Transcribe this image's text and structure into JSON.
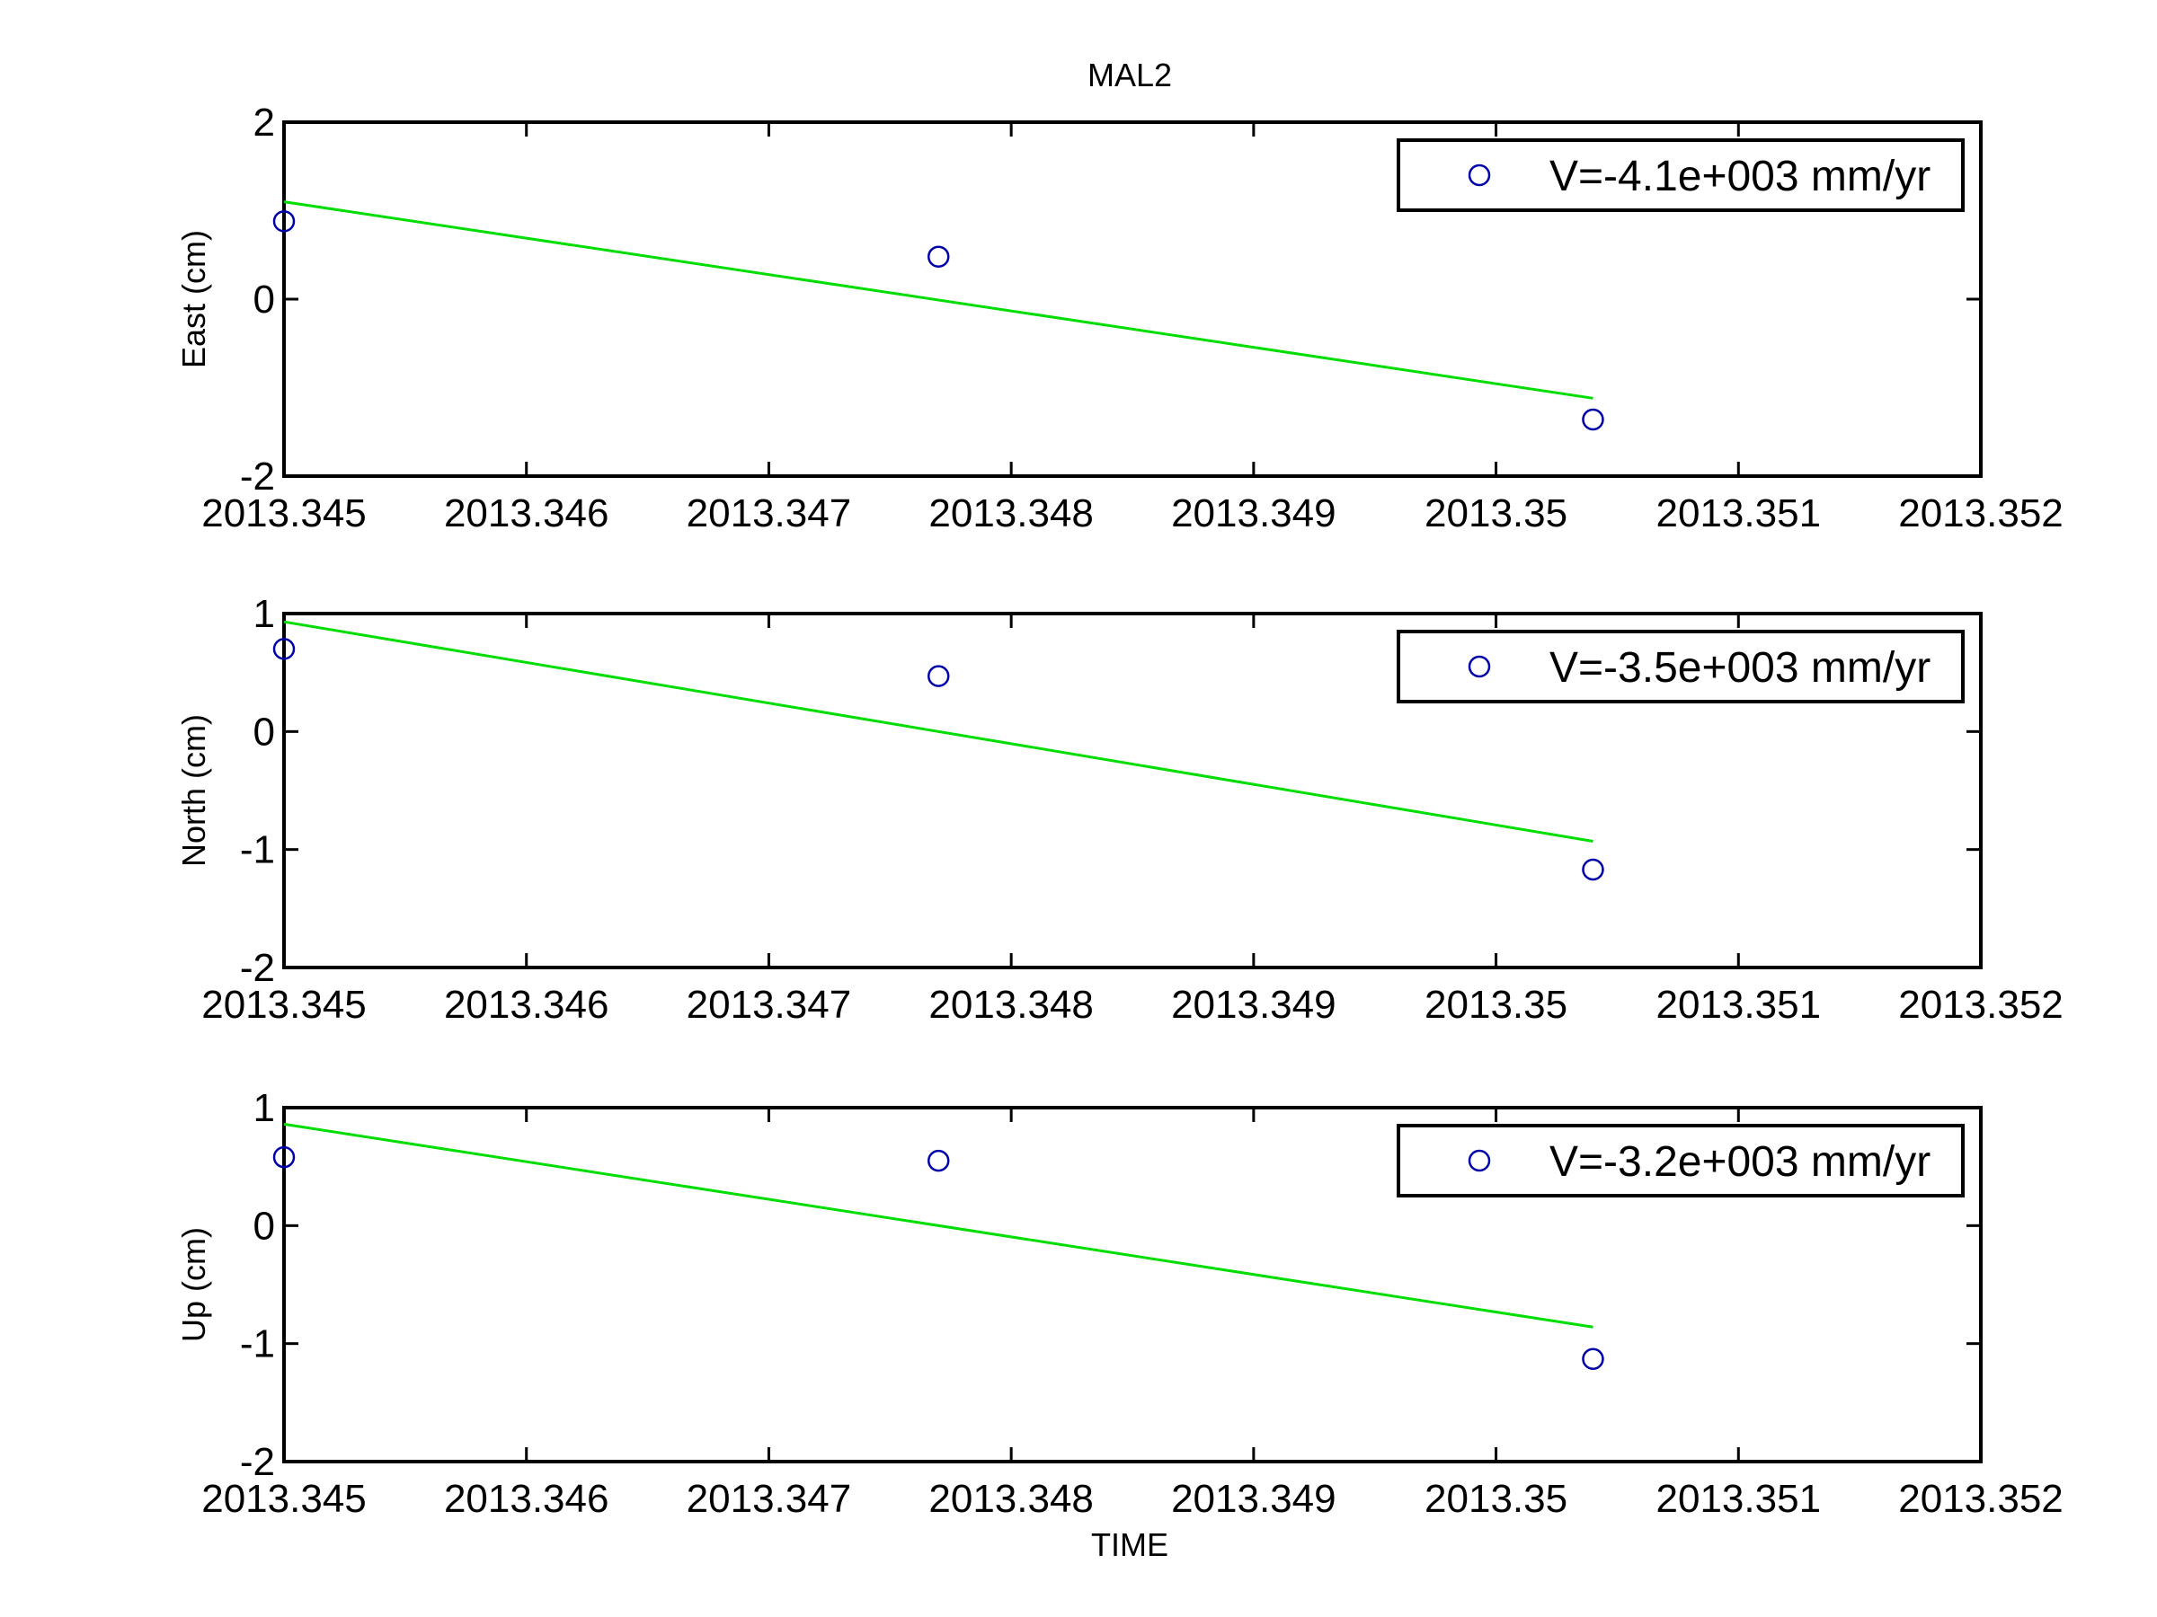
{
  "figure": {
    "title": "MAL2",
    "xlabel": "TIME"
  },
  "colors": {
    "marker": "#0000aa",
    "fit_line": "#00dd00",
    "axes": "#000000",
    "background": "#ffffff"
  },
  "chart_data": [
    {
      "type": "scatter",
      "ylabel": "East (cm)",
      "xlim": [
        2013.345,
        2013.352
      ],
      "ylim": [
        -2,
        2
      ],
      "x_ticks": [
        2013.345,
        2013.346,
        2013.347,
        2013.348,
        2013.349,
        2013.35,
        2013.351,
        2013.352
      ],
      "x_tick_labels": [
        "2013.345",
        "2013.346",
        "2013.347",
        "2013.348",
        "2013.349",
        "2013.35",
        "2013.351",
        "2013.352"
      ],
      "y_ticks": [
        -2,
        0,
        2
      ],
      "y_tick_labels": [
        "-2",
        "0",
        "2"
      ],
      "points": [
        {
          "x": 2013.345,
          "y": 0.88
        },
        {
          "x": 2013.3477,
          "y": 0.48
        },
        {
          "x": 2013.3504,
          "y": -1.36
        }
      ],
      "fit_line": [
        {
          "x": 2013.345,
          "y": 1.1
        },
        {
          "x": 2013.3504,
          "y": -1.12
        }
      ],
      "legend": "V=-4.1e+003 mm/yr",
      "legend_position": "top-right"
    },
    {
      "type": "scatter",
      "ylabel": "North (cm)",
      "xlim": [
        2013.345,
        2013.352
      ],
      "ylim": [
        -2,
        1
      ],
      "x_ticks": [
        2013.345,
        2013.346,
        2013.347,
        2013.348,
        2013.349,
        2013.35,
        2013.351,
        2013.352
      ],
      "x_tick_labels": [
        "2013.345",
        "2013.346",
        "2013.347",
        "2013.348",
        "2013.349",
        "2013.35",
        "2013.351",
        "2013.352"
      ],
      "y_ticks": [
        -2,
        -1,
        0,
        1
      ],
      "y_tick_labels": [
        "-2",
        "-1",
        "0",
        "1"
      ],
      "points": [
        {
          "x": 2013.345,
          "y": 0.7
        },
        {
          "x": 2013.3477,
          "y": 0.47
        },
        {
          "x": 2013.3504,
          "y": -1.17
        }
      ],
      "fit_line": [
        {
          "x": 2013.345,
          "y": 0.93
        },
        {
          "x": 2013.3504,
          "y": -0.93
        }
      ],
      "legend": "V=-3.5e+003 mm/yr",
      "legend_position": "top-right"
    },
    {
      "type": "scatter",
      "ylabel": "Up (cm)",
      "xlim": [
        2013.345,
        2013.352
      ],
      "ylim": [
        -2,
        1
      ],
      "x_ticks": [
        2013.345,
        2013.346,
        2013.347,
        2013.348,
        2013.349,
        2013.35,
        2013.351,
        2013.352
      ],
      "x_tick_labels": [
        "2013.345",
        "2013.346",
        "2013.347",
        "2013.348",
        "2013.349",
        "2013.35",
        "2013.351",
        "2013.352"
      ],
      "y_ticks": [
        -2,
        -1,
        0,
        1
      ],
      "y_tick_labels": [
        "-2",
        "-1",
        "0",
        "1"
      ],
      "points": [
        {
          "x": 2013.345,
          "y": 0.58
        },
        {
          "x": 2013.3477,
          "y": 0.55
        },
        {
          "x": 2013.3504,
          "y": -1.13
        }
      ],
      "fit_line": [
        {
          "x": 2013.345,
          "y": 0.86
        },
        {
          "x": 2013.3504,
          "y": -0.86
        }
      ],
      "legend": "V=-3.2e+003 mm/yr",
      "legend_position": "top-right"
    }
  ]
}
